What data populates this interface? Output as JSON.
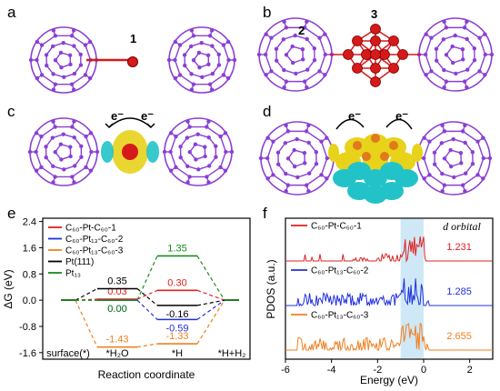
{
  "panels": {
    "a": {
      "letter": "a",
      "site_label": "1"
    },
    "b": {
      "letter": "b",
      "site_label_2": "2",
      "site_label_3": "3"
    },
    "c": {
      "letter": "c",
      "electron_left": "e⁻",
      "electron_right": "e⁻"
    },
    "d": {
      "letter": "d",
      "electron_left": "e⁻",
      "electron_right": "e⁻"
    },
    "e": {
      "letter": "e"
    },
    "f": {
      "letter": "f",
      "annotation": "d orbital"
    }
  },
  "colors": {
    "fullerene": "#8a3fd6",
    "pt_red": "#d61a1a",
    "charge_yellow": "#e8d21a",
    "charge_cyan": "#22c3c8",
    "series_red": "#e02020",
    "series_blue": "#2030e0",
    "series_orange": "#f08020",
    "series_black": "#000000",
    "series_green": "#1a8a1a",
    "highlight": "#cfe8f5"
  },
  "chart_data": [
    {
      "type": "line",
      "ylabel": "ΔG (eV)",
      "xlabel": "Reaction coordinate",
      "categories": [
        "surface(*)",
        "*H₂O",
        "*H",
        "*H+H₂"
      ],
      "ylim": [
        -1.8,
        2.5
      ],
      "yticks": [
        "2.4",
        "1.6",
        "0.8",
        "0.0",
        "-0.8",
        "-1.6"
      ],
      "series": [
        {
          "name": "C₆₀-Pt-C₆₀-1",
          "color": "#e02020",
          "values": [
            0,
            0.03,
            0.3,
            0
          ],
          "labels": [
            "0.03",
            "0.30"
          ]
        },
        {
          "name": "C₆₀-Pt₁₃-C₆₀-2",
          "color": "#2030e0",
          "values": [
            0,
            0.0,
            -0.59,
            0
          ],
          "labels": [
            "0.00",
            "-0.59"
          ]
        },
        {
          "name": "C₆₀-Pt₁₃-C₆₀-3",
          "color": "#f08020",
          "values": [
            0,
            -1.43,
            -1.33,
            0
          ],
          "labels": [
            "-1.43",
            "-1.33"
          ]
        },
        {
          "name": "Pt(111)",
          "color": "#000000",
          "values": [
            0,
            0.35,
            -0.16,
            0
          ],
          "labels": [
            "0.35",
            "-0.16"
          ]
        },
        {
          "name": "Pt₁₃",
          "color": "#1a8a1a",
          "values": [
            0,
            0.0,
            1.35,
            0
          ],
          "labels": [
            "0.00",
            "1.35"
          ]
        }
      ]
    },
    {
      "type": "line",
      "ylabel": "PDOS (a.u.)",
      "xlabel": "Energy (eV)",
      "xlim": [
        -6,
        3
      ],
      "xticks": [
        "-6",
        "-4",
        "-2",
        "0",
        "2"
      ],
      "series": [
        {
          "name": "C₆₀-Pt-C₆₀-1",
          "color": "#e02020",
          "value_label": "1.231"
        },
        {
          "name": "C₆₀-Pt₁₃-C₆₀-2",
          "color": "#2030e0",
          "value_label": "1.285"
        },
        {
          "name": "C₆₀-Pt₁₃-C₆₀-3",
          "color": "#f08020",
          "value_label": "2.655"
        }
      ]
    }
  ]
}
